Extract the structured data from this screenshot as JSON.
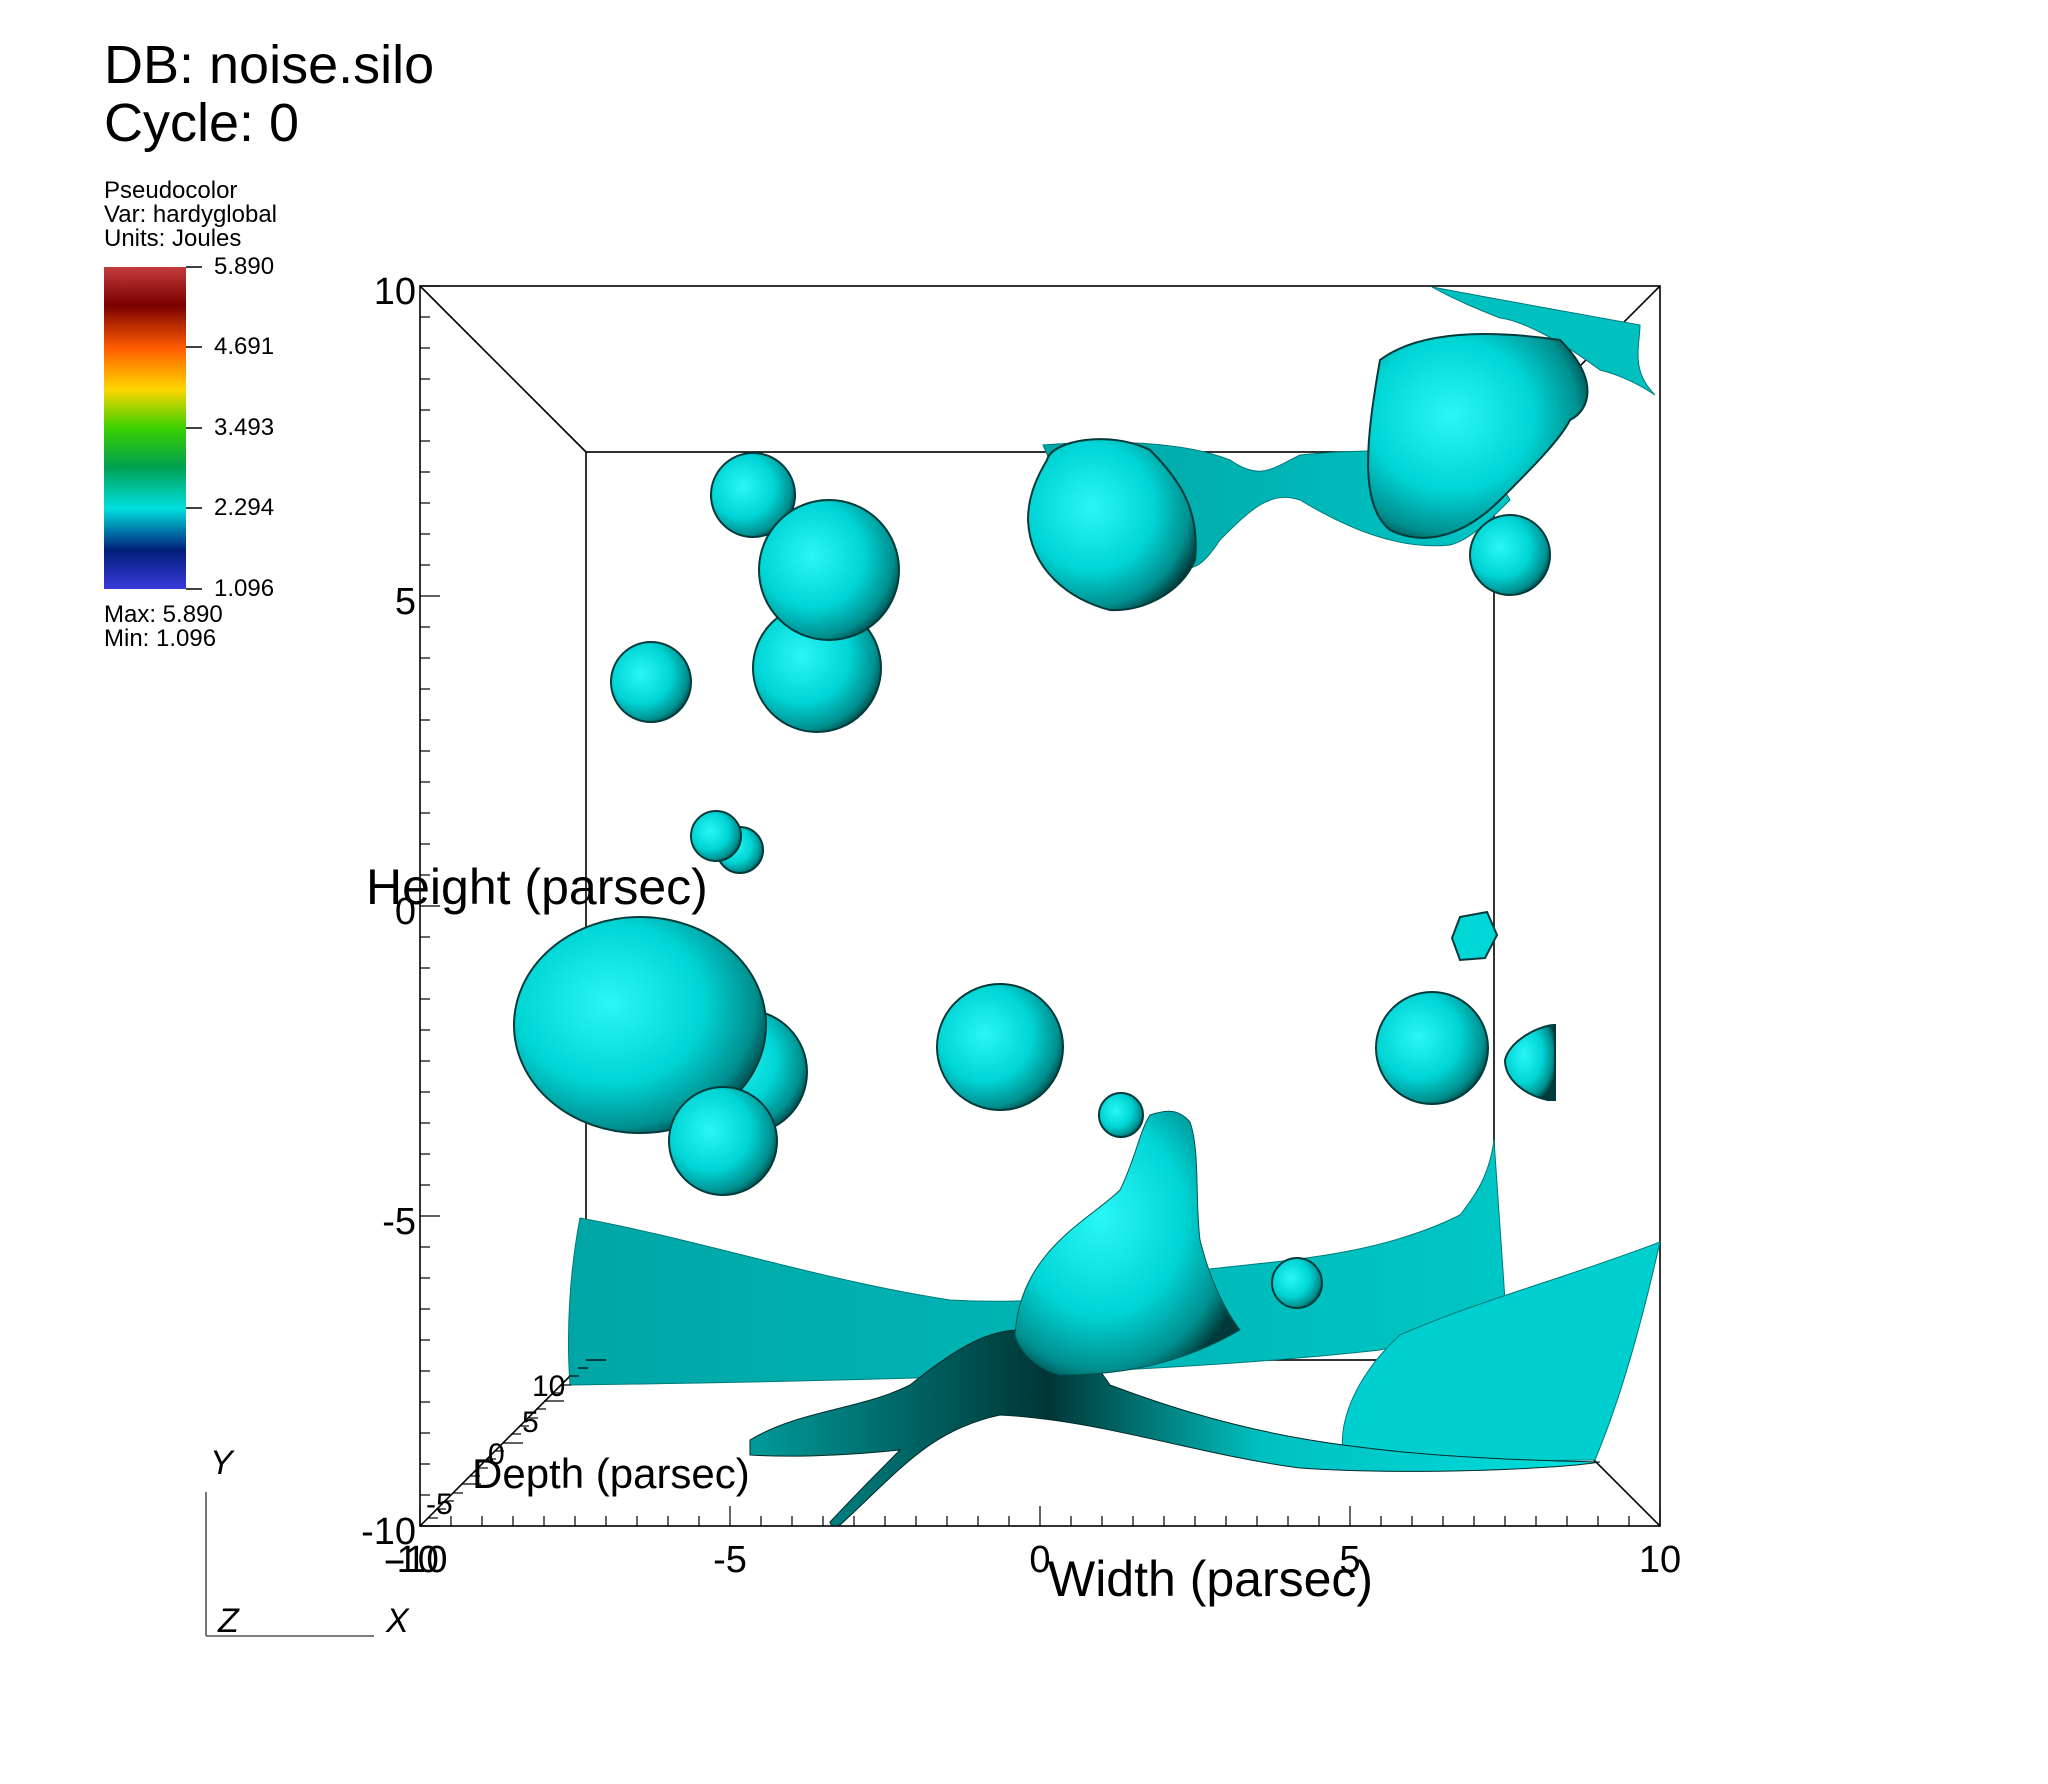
{
  "header": {
    "db_line": "DB: noise.silo",
    "cycle_line": "Cycle: 0"
  },
  "legend": {
    "plot_type": "Pseudocolor",
    "var_line": "Var: hardyglobal",
    "units_line": "Units: Joules",
    "ticks": [
      "5.890",
      "4.691",
      "3.493",
      "2.294",
      "1.096"
    ],
    "max_line": "Max:  5.890",
    "min_line": "Min:  1.096",
    "colormap": [
      "#c43b3b",
      "#7a0000",
      "#ff5a00",
      "#ffd700",
      "#3bd000",
      "#00a050",
      "#00e0e0",
      "#001e78",
      "#3a3adc"
    ]
  },
  "axes": {
    "height_label": "Height (parsec)",
    "width_label": "Width (parsec)",
    "depth_label": "Depth (parsec)",
    "y_ticks": [
      "10",
      "5",
      "0",
      "-5",
      "-10"
    ],
    "x_ticks": [
      "-10",
      "-5",
      "0",
      "5",
      "10"
    ],
    "depth_ticks": [
      "-10",
      "-5",
      "0",
      "5",
      "10"
    ]
  },
  "triad": {
    "y": "Y",
    "z": "Z",
    "x": "X"
  },
  "surface_color": "#00c8c8"
}
